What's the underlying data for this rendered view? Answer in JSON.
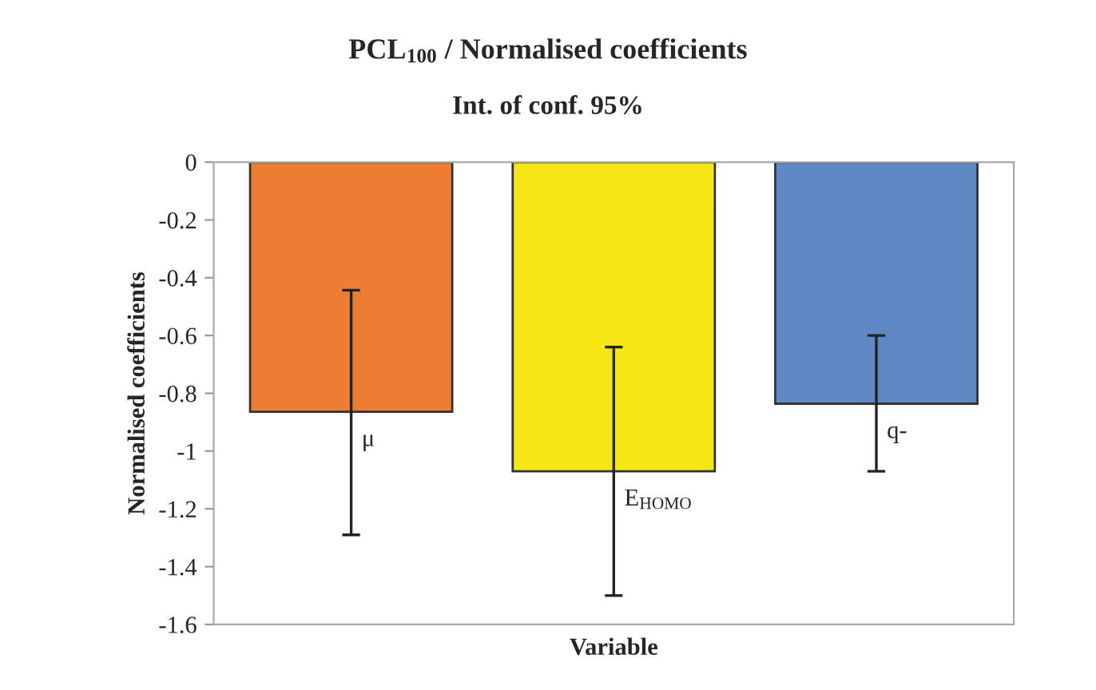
{
  "chart_data": {
    "type": "bar",
    "title": "PCL$_{100}$ / Normalised coefficients",
    "subtitle": "Int. of conf. 95%",
    "xlabel": "Variable",
    "ylabel": "Normalised coefficients",
    "categories": [
      "μ",
      "E$_{HOMO}$",
      "q-"
    ],
    "values": [
      -0.864,
      -1.07,
      -0.836
    ],
    "colors": [
      "#ed7d31",
      "#f5e614",
      "#5f88c4"
    ],
    "errors": [
      [
        -1.29,
        -0.443
      ],
      [
        -1.5,
        -0.64
      ],
      [
        -1.07,
        -0.6
      ]
    ],
    "ylim": [
      -1.6,
      0
    ],
    "yticks": [
      0,
      -0.2,
      -0.4,
      -0.6,
      -0.8,
      -1,
      -1.2,
      -1.4,
      -1.6
    ],
    "tick_labels": "y",
    "grid": false,
    "legend": false
  }
}
